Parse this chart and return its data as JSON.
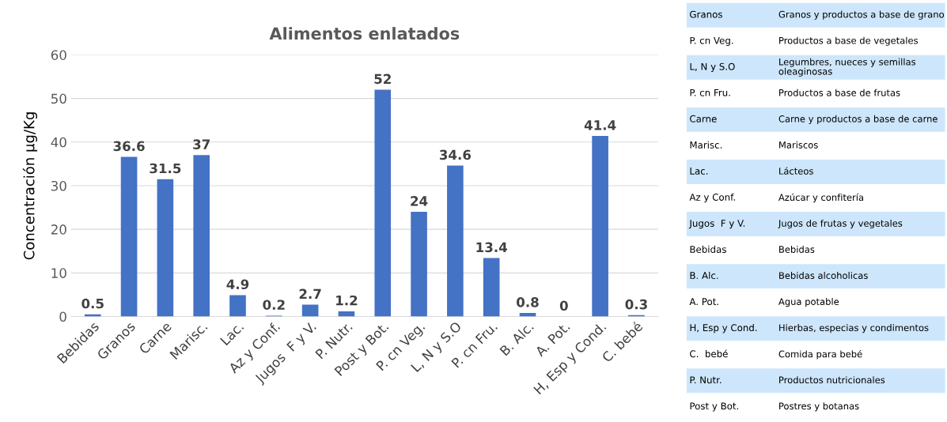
{
  "chart_data": {
    "type": "bar",
    "title": "Alimentos enlatados",
    "ylabel": "Concentración µg/Kg",
    "categories": [
      "Bebidas",
      "Granos",
      "Carne",
      "Marisc.",
      "Lac.",
      "Az y Conf.",
      "Jugos  F y V.",
      "P. Nutr.",
      "Post y Bot.",
      "P. cn Veg.",
      "L, N y S.O",
      "P. cn Fru.",
      "B. Alc.",
      "A. Pot.",
      "H, Esp y Cond.",
      "C. bebé"
    ],
    "values": [
      0.5,
      36.6,
      31.5,
      37,
      4.9,
      0.2,
      2.7,
      1.2,
      52,
      24,
      34.6,
      13.4,
      0.8,
      0,
      41.4,
      0.3
    ],
    "color": "#4472c4",
    "ylim": [
      0,
      60
    ],
    "yticks": [
      0,
      10,
      20,
      30,
      40,
      50,
      60
    ],
    "grid": "y",
    "data_labels": true,
    "annotations": [
      "Granos",
      "Granos y productos a base de grano",
      "P. cn Veg.",
      "Productos a base de vegetales",
      "L, N y S.O",
      "Legumbres, nueces y semillas oleaginosas",
      "P. cn Fru.",
      "Productos a base de frutas",
      "Carne",
      "Carne y productos a base de carne",
      "Marisc.",
      "Mariscos",
      "Lac.",
      "Lácteos",
      "Az y Conf.",
      "Azúcar y confitería",
      "Jugos  F y V.",
      "Jugos de frutas y vegetales",
      "Bebidas",
      "Bebidas",
      "B. Alc.",
      "Bebidas alcoholicas",
      "A. Pot.",
      "Agua potable",
      "H, Esp y Cond.",
      "Hierbas, especias y condimentos",
      "C.  bebé",
      "Comida para bebé",
      "P. Nutr.",
      "Productos nutricionales",
      "Post y Bot.",
      "Postres y botanas"
    ]
  }
}
